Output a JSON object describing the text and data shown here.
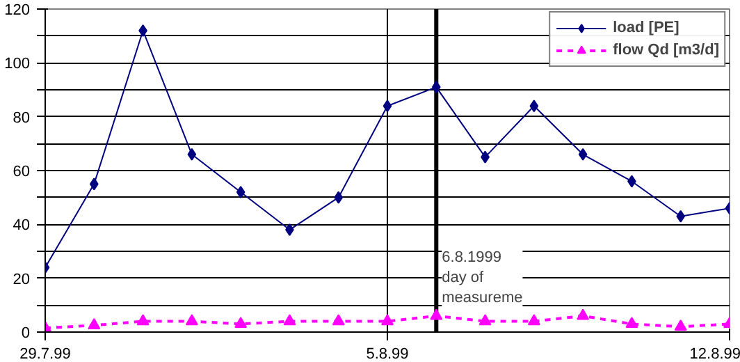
{
  "chart_data": {
    "type": "line",
    "x": [
      "1999-07-29",
      "1999-07-30",
      "1999-07-31",
      "1999-08-01",
      "1999-08-02",
      "1999-08-03",
      "1999-08-04",
      "1999-08-05",
      "1999-08-06",
      "1999-08-07",
      "1999-08-08",
      "1999-08-09",
      "1999-08-10",
      "1999-08-11",
      "1999-08-12"
    ],
    "series": [
      {
        "name": "load [PE]",
        "color": "#000080",
        "marker": "diamond",
        "line_style": "solid",
        "values": [
          24,
          55,
          112,
          66,
          52,
          38,
          50,
          84,
          91,
          65,
          84,
          66,
          56,
          43,
          46
        ]
      },
      {
        "name": "flow Qd [m3/d]",
        "color": "#ff00ff",
        "marker": "triangle",
        "line_style": "dashed",
        "values": [
          1.5,
          2.5,
          4,
          4,
          3,
          4,
          4,
          4,
          6,
          4,
          4,
          6,
          3,
          2,
          3
        ]
      }
    ],
    "xlim": [
      "1999-07-29",
      "1999-08-12"
    ],
    "xticks": [
      {
        "value": "1999-07-29",
        "label": "29.7.99"
      },
      {
        "value": "1999-08-05",
        "label": "5.8.99"
      },
      {
        "value": "1999-08-12",
        "label": "12.8.99"
      }
    ],
    "ylim": [
      0,
      120
    ],
    "yticks": [
      0,
      {
        "value": 10,
        "label": null
      },
      20,
      {
        "value": 30,
        "label": null
      },
      40,
      {
        "value": 50,
        "label": null
      },
      60,
      {
        "value": 70,
        "label": null
      },
      80,
      {
        "value": 90,
        "label": null
      },
      100,
      {
        "value": 110,
        "label": null
      },
      120
    ],
    "ref_lines": [
      {
        "axis": "x",
        "value": "1999-08-06",
        "label": "6.8.1999\nday of\nmeasureme",
        "color": "#000000"
      }
    ],
    "grid": true,
    "legend": "top right"
  }
}
